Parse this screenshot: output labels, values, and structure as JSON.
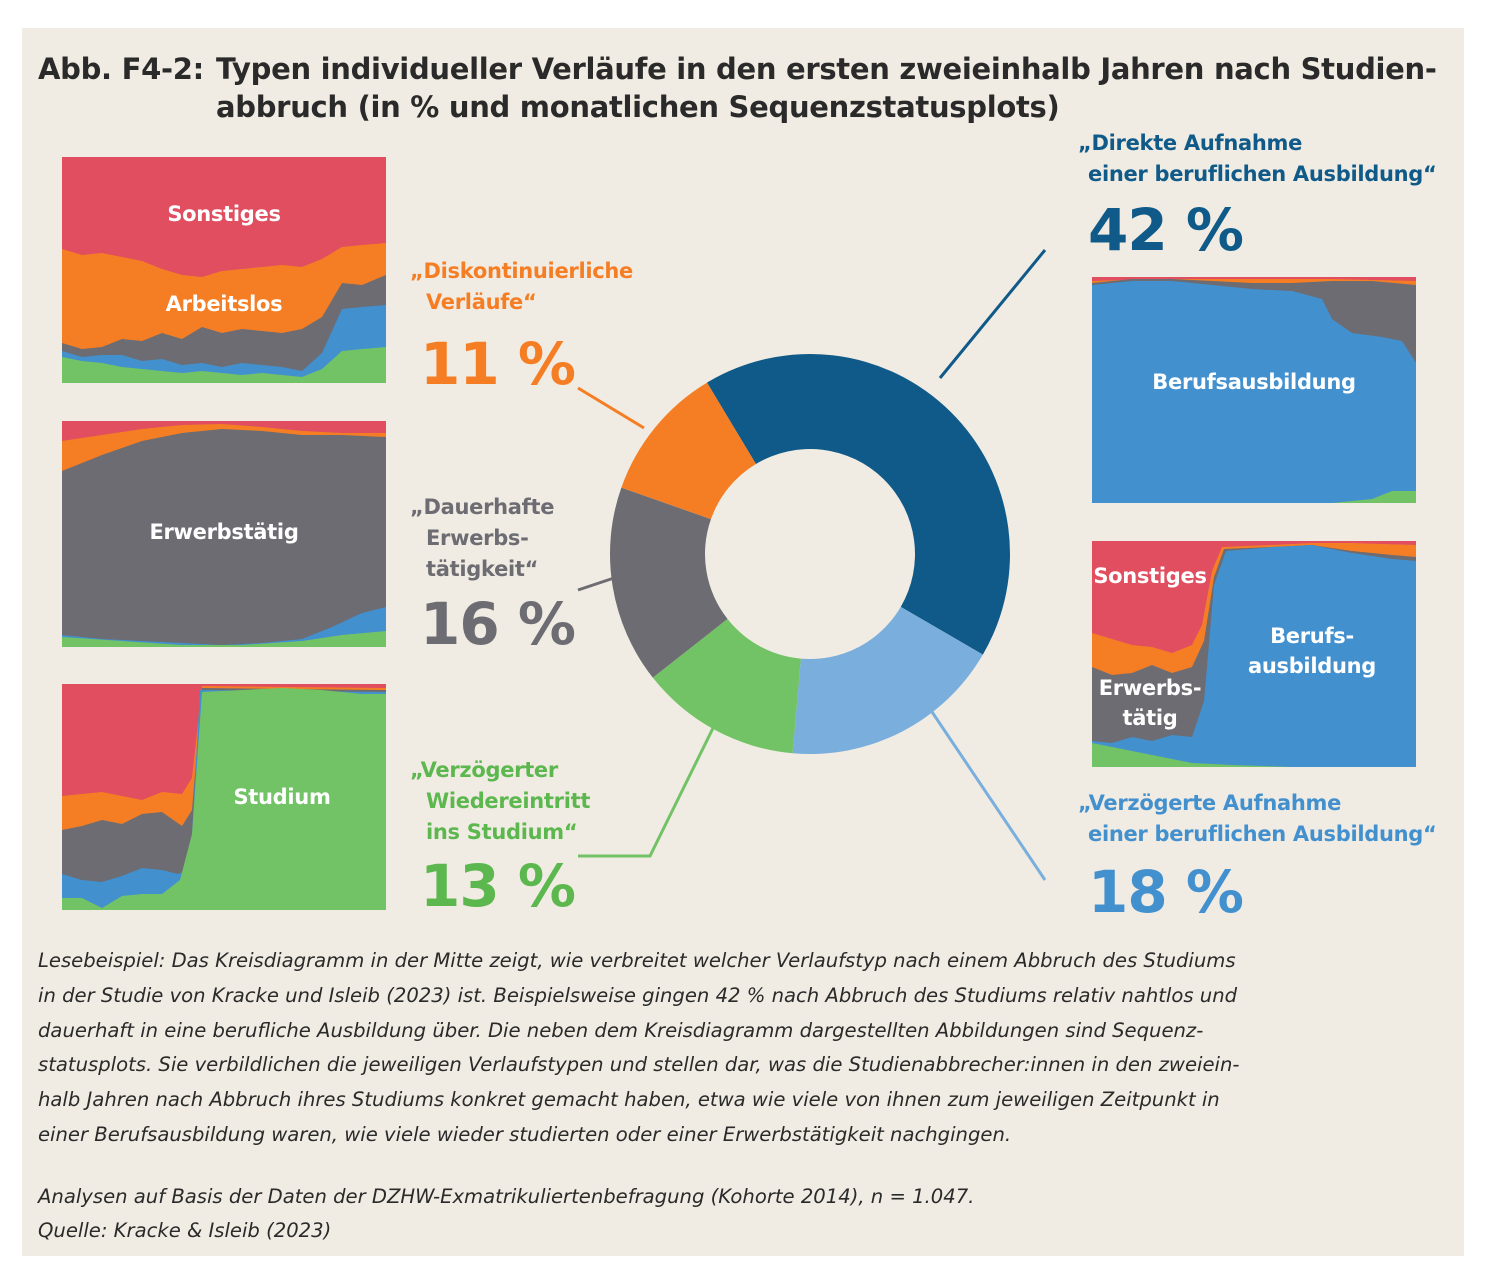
{
  "figure": {
    "label": "Abb. F4-2:",
    "title_lines": [
      "Typen individueller Verläufe in den ersten zweieinhalb Jahren nach Studien-",
      "abbruch (in % und monatlichen Sequenzstatusplots)"
    ]
  },
  "colors": {
    "direkt": "#0f5a88",
    "verzoegert_ausbildung": "#7aaedc",
    "studium": "#72c266",
    "erwerbstaetig": "#6c6c72",
    "diskontinuierlich": "#f57e25",
    "sonstiges": "#e04e60",
    "arbeitslos": "#f57e25",
    "berufsausbildung": "#4390cf",
    "connector_direkt": "#0f5a88",
    "connector_verzoegert": "#7aaedc"
  },
  "chart_data": {
    "type": "pie",
    "donut": true,
    "slices": [
      {
        "key": "direkt",
        "label_lines": [
          "„Direkte Aufnahme",
          "einer beruflichen Ausbildung“"
        ],
        "value": 42,
        "value_label": "42 %",
        "color": "#0f5a88"
      },
      {
        "key": "verzoegert_ausbildung",
        "label_lines": [
          "„Verzögerte Aufnahme",
          "einer beruflichen Ausbildung“"
        ],
        "value": 18,
        "value_label": "18 %",
        "color": "#7aaedc"
      },
      {
        "key": "studium",
        "label_lines": [
          "„Verzögerter",
          "Wiedereintritt",
          "ins Studium“"
        ],
        "value": 13,
        "value_label": "13 %",
        "color": "#72c266"
      },
      {
        "key": "erwerbstaetig",
        "label_lines": [
          "„Dauerhafte",
          "Erwerbs-",
          "tätigkeit“"
        ],
        "value": 16,
        "value_label": "16 %",
        "color": "#6c6c72"
      },
      {
        "key": "diskontinuierlich",
        "label_lines": [
          "„Diskontinuierliche",
          "Verläufe“"
        ],
        "value": 11,
        "value_label": "11 %",
        "color": "#f57e25"
      }
    ]
  },
  "sequence_plots": {
    "diskontinuierlich": {
      "labels": [
        "Sonstiges",
        "Arbeitslos"
      ]
    },
    "erwerbstaetig": {
      "labels": [
        "Erwerbstätig"
      ]
    },
    "studium": {
      "labels": [
        "Studium"
      ]
    },
    "direkt": {
      "labels": [
        "Berufsausbildung"
      ]
    },
    "verzoegert_ausbildung": {
      "labels": [
        "Sonstiges",
        "Erwerbs-\ntätig",
        "Berufs-\nausbildung"
      ]
    }
  },
  "notes": {
    "lines": [
      "Lesebeispiel: Das Kreisdiagramm in der Mitte zeigt, wie verbreitet welcher Verlaufstyp nach einem Abbruch des Studiums",
      "in der Studie von Kracke und Isleib (2023) ist. Beispielsweise gingen 42 % nach Abbruch des Studiums relativ nahtlos und",
      "dauerhaft in eine berufliche Ausbildung über. Die neben dem Kreisdiagramm dargestellten Abbildungen sind Sequenz-",
      "statusplots. Sie verbildlichen die jeweiligen Verlaufstypen und stellen dar, was die Studienabbrecher:innen in den zweiein-",
      "halb Jahren nach Abbruch ihres Studiums konkret gemacht haben, etwa wie viele von ihnen zum jeweiligen Zeitpunkt in",
      "einer Berufsausbildung waren, wie viele wieder studierten oder einer Erwerbstätigkeit nachgingen."
    ],
    "source_lines": [
      "Analysen auf Basis der Daten der DZHW-Exmatrikuliertenbefragung (Kohorte 2014), n = 1.047.",
      "Quelle: Kracke & Isleib (2023)"
    ]
  }
}
